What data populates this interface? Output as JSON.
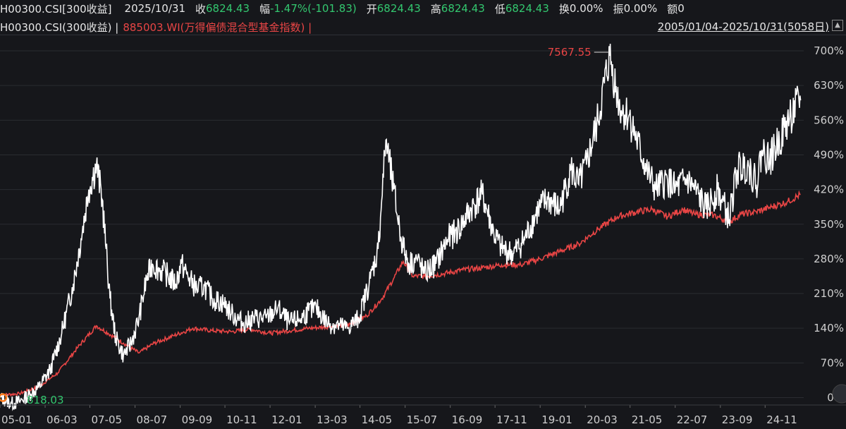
{
  "quote": {
    "code": "H00300.CSI[300收益]",
    "date": "2025/10/31",
    "close_label": "收",
    "close_value": "6824.43",
    "change_label": "幅",
    "change_value": "-1.47%(-101.83)",
    "open_label": "开",
    "open_value": "6824.43",
    "high_label": "高",
    "high_value": "6824.43",
    "low_label": "低",
    "low_value": "6824.43",
    "turnover_label": "换",
    "turnover_value": "0.00%",
    "amplitude_label": "振",
    "amplitude_value": "0.00%",
    "amount_label": "额",
    "amount_value": "0"
  },
  "legend": {
    "series1": "H00300.CSI(300收益) |",
    "series2": "885003.WI(万得偏债混合型基金指数) |",
    "range": "2005/01/04-2025/10/31(5058日)",
    "expand_icon": "chevron-up-icon"
  },
  "colors": {
    "background": "#16171b",
    "series1": "#ffffff",
    "series2": "#e84545",
    "up": "#e84545",
    "down": "#33c76f",
    "max_label": "#e84545",
    "min_label": "#33c76f"
  },
  "chart_data": {
    "type": "line",
    "y_unit": "%",
    "ylim": [
      -15,
      720
    ],
    "y_ticks": [
      "700%",
      "630%",
      "560%",
      "490%",
      "420%",
      "350%",
      "280%",
      "210%",
      "140%",
      "70%",
      "0%"
    ],
    "y_tick_values": [
      700,
      630,
      560,
      490,
      420,
      350,
      280,
      210,
      140,
      70,
      0
    ],
    "x_ticks": [
      "05-01",
      "06-03",
      "07-05",
      "08-07",
      "09-09",
      "10-11",
      "12-01",
      "13-03",
      "14-05",
      "15-07",
      "16-09",
      "17-11",
      "19-01",
      "20-03",
      "21-05",
      "22-07",
      "23-09",
      "24-11"
    ],
    "x_tick_years": [
      2005.0,
      2006.17,
      2007.33,
      2008.5,
      2009.67,
      2010.83,
      2012.0,
      2013.17,
      2014.33,
      2015.5,
      2016.67,
      2017.83,
      2019.0,
      2020.17,
      2021.33,
      2022.5,
      2023.67,
      2024.83
    ],
    "x_range": [
      2005.0,
      2025.83
    ],
    "max_label": "7567.55",
    "min_label": "818.03",
    "series": [
      {
        "name": "H00300.CSI(300收益)",
        "x": [
          2005.0,
          2005.3,
          2005.5,
          2005.8,
          2006.0,
          2006.3,
          2006.6,
          2006.9,
          2007.1,
          2007.3,
          2007.5,
          2007.65,
          2007.75,
          2007.85,
          2008.0,
          2008.2,
          2008.4,
          2008.6,
          2008.8,
          2008.95,
          2009.1,
          2009.3,
          2009.55,
          2009.7,
          2009.9,
          2010.1,
          2010.3,
          2010.5,
          2010.8,
          2011.0,
          2011.3,
          2011.6,
          2011.9,
          2012.2,
          2012.5,
          2012.8,
          2013.0,
          2013.2,
          2013.5,
          2013.8,
          2014.0,
          2014.3,
          2014.6,
          2014.8,
          2015.0,
          2015.2,
          2015.4,
          2015.5,
          2015.6,
          2015.8,
          2016.0,
          2016.3,
          2016.6,
          2016.9,
          2017.2,
          2017.5,
          2017.8,
          2018.0,
          2018.3,
          2018.6,
          2018.95,
          2019.2,
          2019.5,
          2019.8,
          2020.0,
          2020.2,
          2020.5,
          2020.8,
          2021.0,
          2021.1,
          2021.3,
          2021.5,
          2021.8,
          2022.0,
          2022.3,
          2022.5,
          2022.8,
          2023.0,
          2023.3,
          2023.6,
          2023.9,
          2024.1,
          2024.4,
          2024.6,
          2024.75,
          2024.95,
          2025.2,
          2025.5,
          2025.75
        ],
        "values": [
          0,
          -12,
          -8,
          8,
          20,
          55,
          130,
          230,
          320,
          420,
          470,
          400,
          300,
          200,
          120,
          85,
          110,
          160,
          240,
          270,
          260,
          250,
          230,
          270,
          240,
          220,
          225,
          200,
          190,
          170,
          150,
          160,
          160,
          180,
          150,
          160,
          175,
          180,
          150,
          145,
          140,
          160,
          240,
          300,
          520,
          420,
          320,
          290,
          270,
          280,
          250,
          270,
          320,
          340,
          380,
          410,
          330,
          300,
          290,
          320,
          380,
          400,
          380,
          460,
          430,
          470,
          560,
          690,
          610,
          580,
          570,
          520,
          450,
          420,
          440,
          420,
          440,
          420,
          380,
          420,
          360,
          460,
          470,
          430,
          500,
          480,
          520,
          570,
          600
        ]
      },
      {
        "name": "885003.WI(万得偏债混合型基金指数)",
        "x": [
          2005.0,
          2005.5,
          2006.0,
          2006.5,
          2007.0,
          2007.5,
          2007.8,
          2008.2,
          2008.6,
          2009.0,
          2009.5,
          2010.0,
          2010.5,
          2011.0,
          2011.5,
          2012.0,
          2012.5,
          2013.0,
          2013.5,
          2014.0,
          2014.5,
          2014.9,
          2015.2,
          2015.45,
          2015.7,
          2016.0,
          2016.5,
          2017.0,
          2017.5,
          2018.0,
          2018.5,
          2019.0,
          2019.5,
          2020.0,
          2020.5,
          2021.0,
          2021.5,
          2021.9,
          2022.3,
          2022.7,
          2023.0,
          2023.5,
          2023.9,
          2024.2,
          2024.6,
          2025.0,
          2025.4,
          2025.75
        ],
        "values": [
          5,
          8,
          22,
          50,
          100,
          145,
          130,
          110,
          90,
          110,
          125,
          140,
          135,
          133,
          138,
          130,
          135,
          140,
          143,
          145,
          165,
          200,
          240,
          275,
          245,
          245,
          250,
          258,
          262,
          268,
          268,
          280,
          295,
          310,
          340,
          365,
          375,
          380,
          365,
          380,
          370,
          368,
          355,
          370,
          375,
          385,
          395,
          410
        ]
      }
    ]
  }
}
